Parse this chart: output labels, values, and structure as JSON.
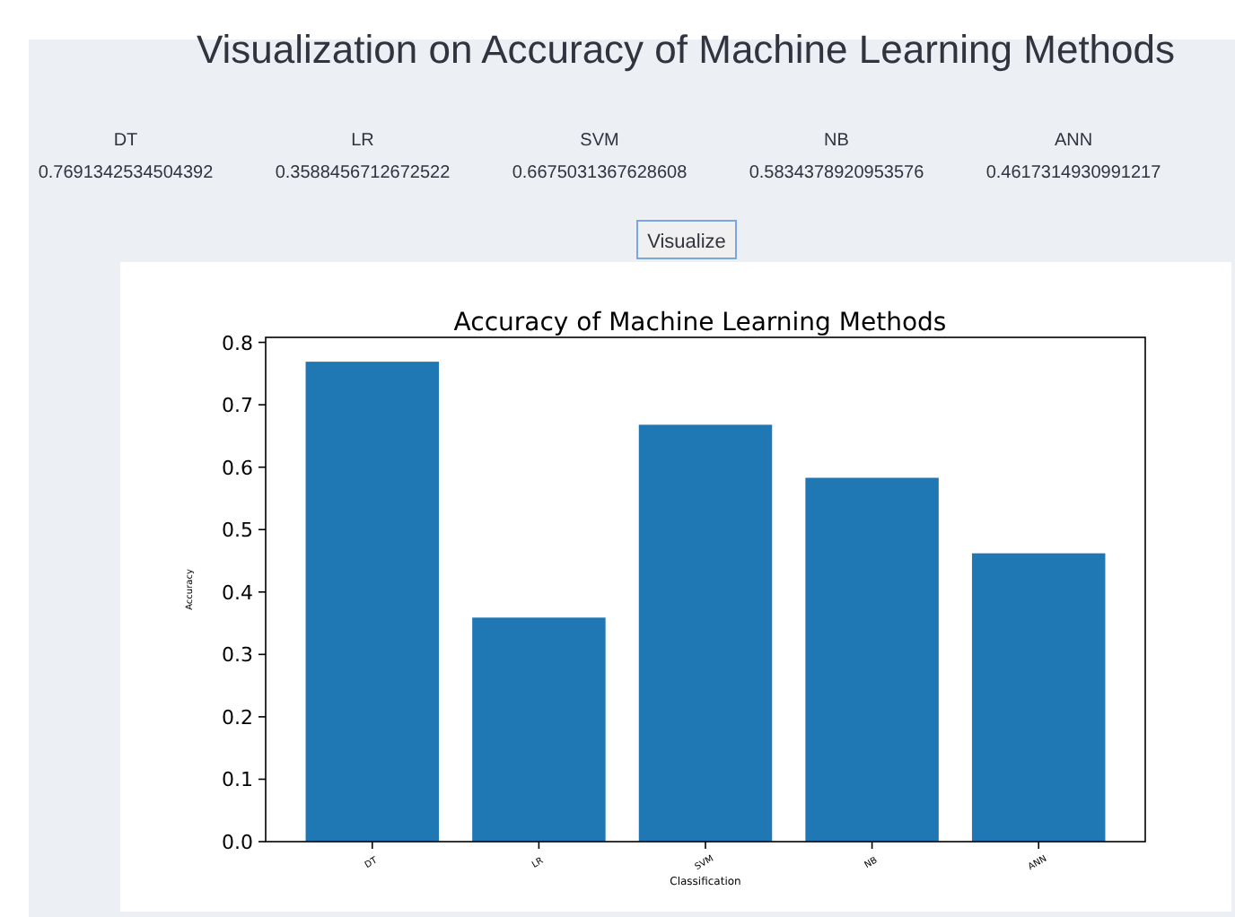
{
  "chart_data": {
    "type": "bar",
    "title": "Accuracy of Machine Learning Methods",
    "xlabel": "Classification",
    "ylabel": "Accuracy",
    "categories": [
      "DT",
      "LR",
      "SVM",
      "NB",
      "ANN"
    ],
    "values": [
      0.769,
      0.359,
      0.668,
      0.583,
      0.462
    ],
    "color": "#1f77b4",
    "ylim": [
      0,
      0.808
    ],
    "yticks": [
      {
        "value": 0,
        "label": "0.0"
      },
      0.1,
      0.2,
      0.3,
      0.4,
      0.5,
      0.6,
      0.7,
      0.8
    ],
    "grid": false,
    "annotations": [
      "Visualization on Accuracy of Machine Learning Methods",
      "DT",
      "0.7691342534504392",
      "LR",
      "0.3588456712672522",
      "SVM",
      "0.6675031367628608",
      "NB",
      "0.5834378920953576",
      "ANN",
      "0.4617314930991217",
      "Visualize"
    ]
  }
}
